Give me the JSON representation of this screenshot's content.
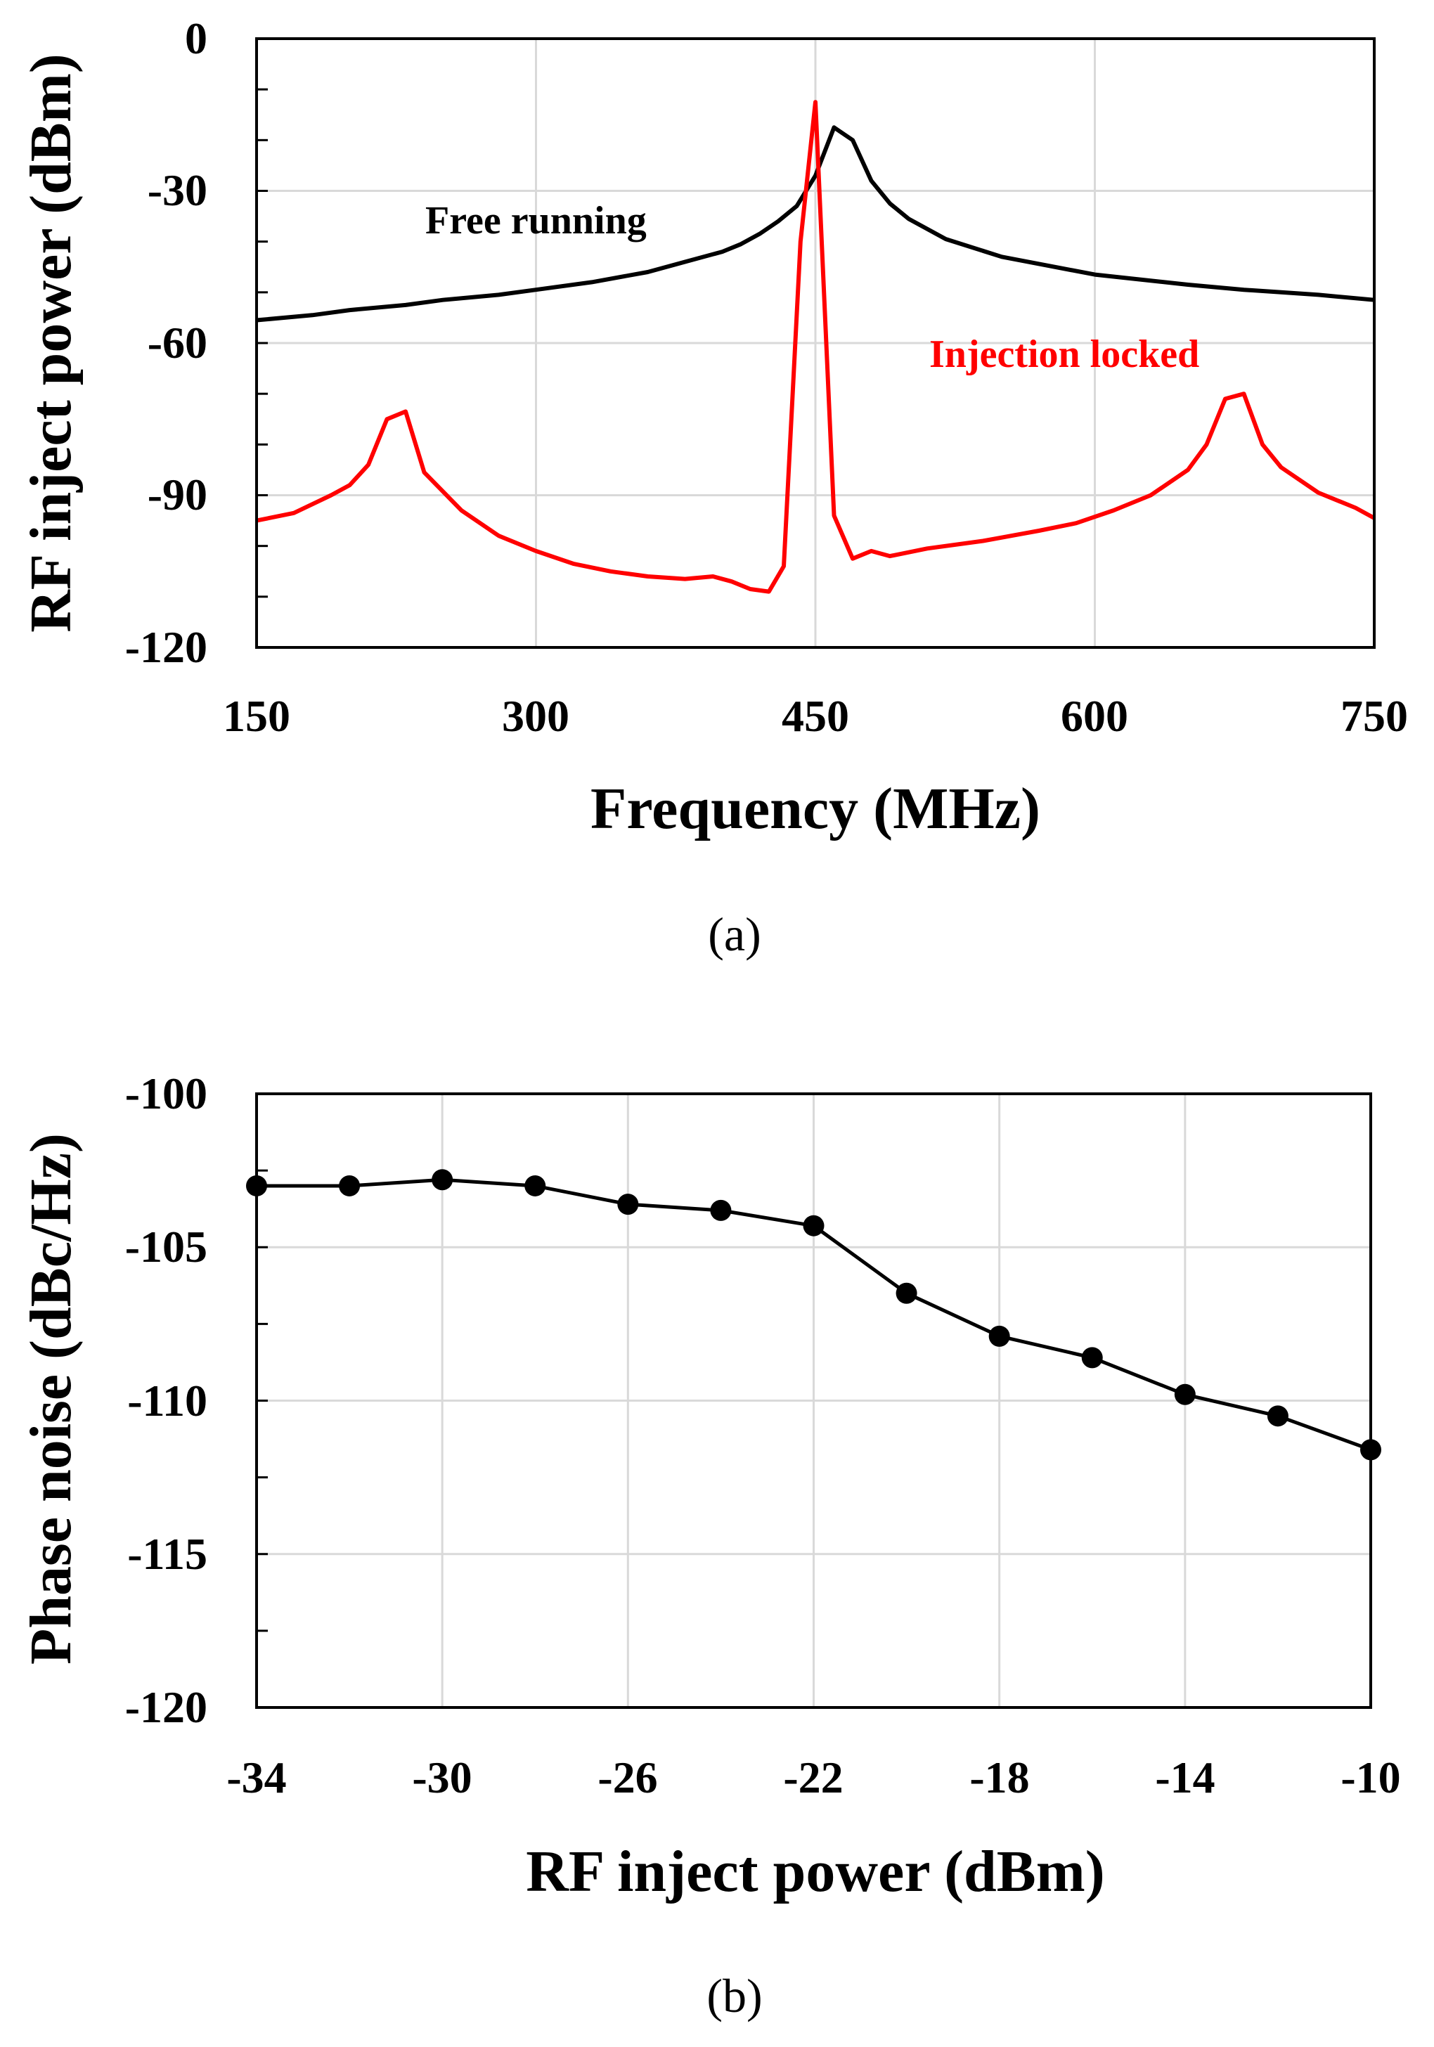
{
  "chart_data": [
    {
      "type": "line",
      "xlabel": "Frequency (MHz)",
      "ylabel": "RF inject power (dBm)",
      "xlim": [
        150,
        750
      ],
      "ylim": [
        -120,
        0
      ],
      "xticks": [
        "150",
        "300",
        "450",
        "600",
        "750"
      ],
      "yticks": [
        "0",
        "-30",
        "-60",
        "-90",
        "-120"
      ],
      "xtick_values": [
        150,
        300,
        450,
        600,
        750
      ],
      "ytick_values": [
        0,
        -30,
        -60,
        -90,
        -120
      ],
      "grid": true,
      "caption": "(a)",
      "series": [
        {
          "name": "Free running",
          "color": "#000000",
          "x": [
            150,
            180,
            200,
            230,
            250,
            280,
            300,
            330,
            360,
            380,
            400,
            410,
            420,
            430,
            440,
            450,
            460,
            470,
            480,
            490,
            500,
            520,
            550,
            600,
            650,
            680,
            700,
            720,
            750
          ],
          "y": [
            -55.5,
            -54.5,
            -53.5,
            -52.5,
            -51.5,
            -50.5,
            -49.5,
            -48,
            -46,
            -44,
            -42,
            -40.5,
            -38.5,
            -36,
            -33,
            -27,
            -17.5,
            -20,
            -28,
            -32.5,
            -35.5,
            -39.5,
            -43,
            -46.5,
            -48.5,
            -49.5,
            -50,
            -50.5,
            -51.5
          ]
        },
        {
          "name": "Injection locked",
          "color": "#ff0000",
          "x": [
            150,
            170,
            190,
            200,
            210,
            220,
            230,
            240,
            260,
            280,
            300,
            320,
            340,
            360,
            380,
            395,
            405,
            415,
            425,
            433,
            442,
            450,
            460,
            470,
            480,
            490,
            510,
            540,
            570,
            590,
            610,
            630,
            650,
            660,
            670,
            680,
            690,
            700,
            720,
            740,
            750
          ],
          "y": [
            -95,
            -93.5,
            -90,
            -88,
            -84,
            -75,
            -73.5,
            -85.5,
            -93,
            -98,
            -101,
            -103.5,
            -105,
            -106,
            -106.5,
            -106,
            -107,
            -108.5,
            -109,
            -104,
            -40,
            -12.5,
            -94,
            -102.5,
            -101,
            -102,
            -100.5,
            -99,
            -97,
            -95.5,
            -93,
            -90,
            -85,
            -80,
            -71,
            -70,
            -80,
            -84.5,
            -89.5,
            -92.5,
            -94.5
          ]
        }
      ],
      "annotations": [
        {
          "text": "Free running",
          "color": "#000000",
          "x": 245,
          "y": -36
        },
        {
          "text": "Injection locked",
          "color": "#ff0000",
          "x": 598,
          "y": -63
        }
      ]
    },
    {
      "type": "line",
      "xlabel": "RF inject power (dBm)",
      "ylabel": "Phase noise (dBc/Hz)",
      "xlim": [
        -34,
        -10
      ],
      "ylim": [
        -120,
        -100
      ],
      "xticks": [
        "-34",
        "-30",
        "-26",
        "-22",
        "-18",
        "-14",
        "-10"
      ],
      "yticks": [
        "-100",
        "-105",
        "-110",
        "-115",
        "-120"
      ],
      "xtick_values": [
        -34,
        -30,
        -26,
        -22,
        -18,
        -14,
        -10
      ],
      "ytick_values": [
        -100,
        -105,
        -110,
        -115,
        -120
      ],
      "grid": true,
      "caption": "(b)",
      "series": [
        {
          "name": "Phase noise",
          "color": "#000000",
          "x": [
            -34,
            -32,
            -30,
            -28,
            -26,
            -24,
            -22,
            -20,
            -18,
            -16,
            -14,
            -12,
            -10
          ],
          "y": [
            -103,
            -103,
            -102.8,
            -103,
            -103.6,
            -103.8,
            -104.3,
            -106.5,
            -107.9,
            -108.6,
            -109.8,
            -110.5,
            -111.6
          ]
        }
      ]
    }
  ]
}
